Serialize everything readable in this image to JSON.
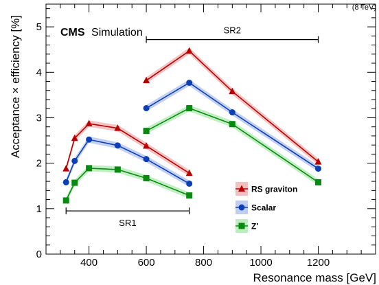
{
  "chart_data": {
    "type": "line",
    "energy_label": "(8 TeV)",
    "experiment": "CMS",
    "experiment_suffix": "Simulation",
    "xlabel": "Resonance mass [GeV]",
    "ylabel": "Acceptance × efficiency [%]",
    "xlim": [
      250,
      1400
    ],
    "ylim": [
      0,
      5.5
    ],
    "xticks": [
      400,
      600,
      800,
      1000,
      1200
    ],
    "yticks": [
      0,
      1,
      2,
      3,
      4,
      5
    ],
    "grid": false,
    "legend_position": "lower-right",
    "regions": [
      {
        "label": "SR1",
        "x": [
          320,
          750
        ],
        "y": 0.95
      },
      {
        "label": "SR2",
        "x": [
          600,
          1200
        ],
        "y": 4.72
      }
    ],
    "series": [
      {
        "name": "RS graviton",
        "marker": "triangle",
        "color": "#b80000",
        "band": "#f2b8b8",
        "segments": [
          {
            "x": [
              320,
              350,
              400,
              500,
              600,
              750
            ],
            "y": [
              1.88,
              2.55,
              2.87,
              2.77,
              2.38,
              1.78
            ]
          },
          {
            "x": [
              600,
              750,
              900,
              1200
            ],
            "y": [
              3.82,
              4.47,
              3.58,
              2.03
            ]
          }
        ]
      },
      {
        "name": "Scalar",
        "marker": "circle",
        "color": "#0a3fb5",
        "band": "#b8c8f0",
        "segments": [
          {
            "x": [
              320,
              350,
              400,
              500,
              600,
              750
            ],
            "y": [
              1.58,
              2.05,
              2.52,
              2.39,
              2.09,
              1.55
            ]
          },
          {
            "x": [
              600,
              750,
              900,
              1200
            ],
            "y": [
              3.21,
              3.77,
              3.12,
              1.88
            ]
          }
        ]
      },
      {
        "name": "Z'",
        "marker": "square",
        "color": "#078a0f",
        "band": "#b6ecb8",
        "segments": [
          {
            "x": [
              320,
              350,
              400,
              500,
              600,
              750
            ],
            "y": [
              1.18,
              1.57,
              1.89,
              1.86,
              1.67,
              1.29
            ]
          },
          {
            "x": [
              600,
              750,
              900,
              1200
            ],
            "y": [
              2.71,
              3.21,
              2.86,
              1.58
            ]
          }
        ]
      }
    ]
  }
}
